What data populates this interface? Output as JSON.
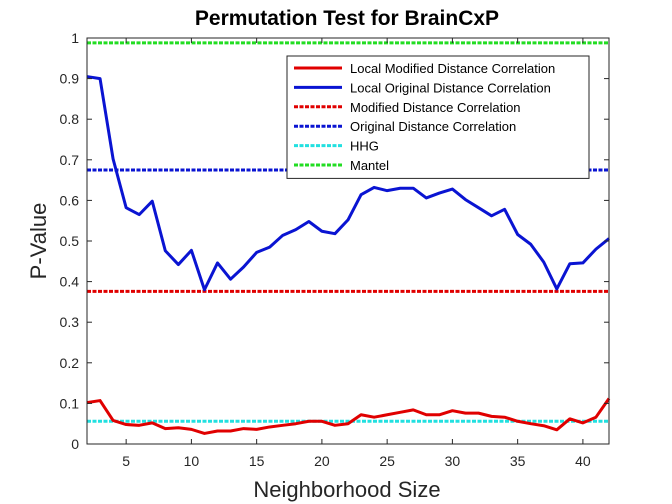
{
  "chart_data": {
    "type": "line",
    "title": "Permutation Test for BrainCxP",
    "xlabel": "Neighborhood Size",
    "ylabel": "P-Value",
    "xlim": [
      2,
      42
    ],
    "ylim": [
      0,
      1
    ],
    "xticks": [
      5,
      10,
      15,
      20,
      25,
      30,
      35,
      40
    ],
    "yticks": [
      0,
      0.1,
      0.2,
      0.3,
      0.4,
      0.5,
      0.6,
      0.7,
      0.8,
      0.9,
      1
    ],
    "ytick_labels": [
      "0",
      "0.1",
      "0.2",
      "0.3",
      "0.4",
      "0.5",
      "0.6",
      "0.7",
      "0.8",
      "0.9",
      "1"
    ],
    "grid": false,
    "legend_position": "top-right",
    "x": [
      2,
      3,
      4,
      5,
      6,
      7,
      8,
      9,
      10,
      11,
      12,
      13,
      14,
      15,
      16,
      17,
      18,
      19,
      20,
      21,
      22,
      23,
      24,
      25,
      26,
      27,
      28,
      29,
      30,
      31,
      32,
      33,
      34,
      35,
      36,
      37,
      38,
      39,
      40,
      41,
      42
    ],
    "series": [
      {
        "name": "Local Modified Distance Correlation",
        "color": "#e00000",
        "style": "solid",
        "values": [
          0.102,
          0.107,
          0.058,
          0.048,
          0.046,
          0.052,
          0.038,
          0.04,
          0.036,
          0.026,
          0.032,
          0.032,
          0.038,
          0.036,
          0.042,
          0.046,
          0.05,
          0.056,
          0.056,
          0.046,
          0.05,
          0.072,
          0.066,
          0.072,
          0.078,
          0.084,
          0.072,
          0.072,
          0.082,
          0.076,
          0.076,
          0.068,
          0.066,
          0.056,
          0.05,
          0.045,
          0.035,
          0.062,
          0.052,
          0.066,
          0.112
        ]
      },
      {
        "name": "Local Original Distance Correlation",
        "color": "#0a14d2",
        "style": "solid",
        "values": [
          0.905,
          0.9,
          0.702,
          0.582,
          0.565,
          0.598,
          0.476,
          0.442,
          0.477,
          0.38,
          0.446,
          0.406,
          0.436,
          0.472,
          0.485,
          0.514,
          0.528,
          0.548,
          0.524,
          0.518,
          0.552,
          0.614,
          0.632,
          0.624,
          0.63,
          0.63,
          0.606,
          0.618,
          0.628,
          0.602,
          0.582,
          0.562,
          0.578,
          0.516,
          0.492,
          0.448,
          0.382,
          0.444,
          0.446,
          0.48,
          0.506
        ]
      },
      {
        "name": "Modified Distance Correlation",
        "color": "#e00000",
        "style": "dashed",
        "values": [
          0.376,
          0.376,
          0.376,
          0.376,
          0.376,
          0.376,
          0.376,
          0.376,
          0.376,
          0.376,
          0.376,
          0.376,
          0.376,
          0.376,
          0.376,
          0.376,
          0.376,
          0.376,
          0.376,
          0.376,
          0.376,
          0.376,
          0.376,
          0.376,
          0.376,
          0.376,
          0.376,
          0.376,
          0.376,
          0.376,
          0.376,
          0.376,
          0.376,
          0.376,
          0.376,
          0.376,
          0.376,
          0.376,
          0.376,
          0.376,
          0.376
        ]
      },
      {
        "name": "Original Distance Correlation",
        "color": "#0a14d2",
        "style": "dashed",
        "values": [
          0.675,
          0.675,
          0.675,
          0.675,
          0.675,
          0.675,
          0.675,
          0.675,
          0.675,
          0.675,
          0.675,
          0.675,
          0.675,
          0.675,
          0.675,
          0.675,
          0.675,
          0.675,
          0.675,
          0.675,
          0.675,
          0.675,
          0.675,
          0.675,
          0.675,
          0.675,
          0.675,
          0.675,
          0.675,
          0.675,
          0.675,
          0.675,
          0.675,
          0.675,
          0.675,
          0.675,
          0.675,
          0.675,
          0.675,
          0.675,
          0.675
        ]
      },
      {
        "name": "HHG",
        "color": "#22e0e0",
        "style": "dashed",
        "values": [
          0.056,
          0.056,
          0.056,
          0.056,
          0.056,
          0.056,
          0.056,
          0.056,
          0.056,
          0.056,
          0.056,
          0.056,
          0.056,
          0.056,
          0.056,
          0.056,
          0.056,
          0.056,
          0.056,
          0.056,
          0.056,
          0.056,
          0.056,
          0.056,
          0.056,
          0.056,
          0.056,
          0.056,
          0.056,
          0.056,
          0.056,
          0.056,
          0.056,
          0.056,
          0.056,
          0.056,
          0.056,
          0.056,
          0.056,
          0.056,
          0.056
        ]
      },
      {
        "name": "Mantel",
        "color": "#22dd22",
        "style": "dashed",
        "values": [
          0.988,
          0.988,
          0.988,
          0.988,
          0.988,
          0.988,
          0.988,
          0.988,
          0.988,
          0.988,
          0.988,
          0.988,
          0.988,
          0.988,
          0.988,
          0.988,
          0.988,
          0.988,
          0.988,
          0.988,
          0.988,
          0.988,
          0.988,
          0.988,
          0.988,
          0.988,
          0.988,
          0.988,
          0.988,
          0.988,
          0.988,
          0.988,
          0.988,
          0.988,
          0.988,
          0.988,
          0.988,
          0.988,
          0.988,
          0.988,
          0.988
        ]
      }
    ],
    "draw_order": [
      4,
      5,
      3,
      2,
      1,
      0
    ]
  }
}
